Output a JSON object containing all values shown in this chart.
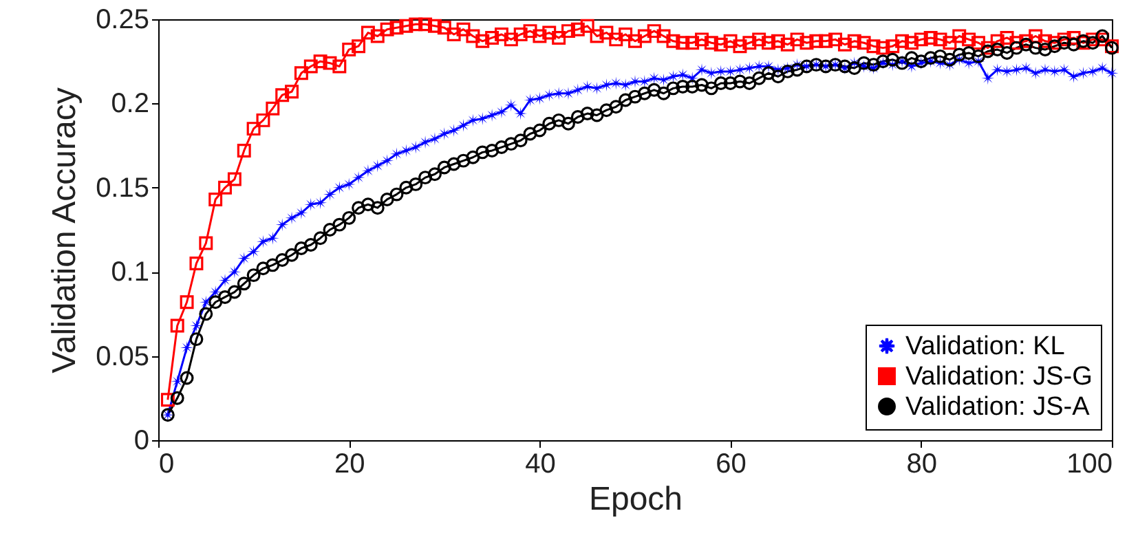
{
  "chart_data": {
    "type": "line",
    "xlabel": "Epoch",
    "ylabel": "Validation Accuracy",
    "x": [
      1,
      2,
      3,
      4,
      5,
      6,
      7,
      8,
      9,
      10,
      11,
      12,
      13,
      14,
      15,
      16,
      17,
      18,
      19,
      20,
      21,
      22,
      23,
      24,
      25,
      26,
      27,
      28,
      29,
      30,
      31,
      32,
      33,
      34,
      35,
      36,
      37,
      38,
      39,
      40,
      41,
      42,
      43,
      44,
      45,
      46,
      47,
      48,
      49,
      50,
      51,
      52,
      53,
      54,
      55,
      56,
      57,
      58,
      59,
      60,
      61,
      62,
      63,
      64,
      65,
      66,
      67,
      68,
      69,
      70,
      71,
      72,
      73,
      74,
      75,
      76,
      77,
      78,
      79,
      80,
      81,
      82,
      83,
      84,
      85,
      86,
      87,
      88,
      89,
      90,
      91,
      92,
      93,
      94,
      95,
      96,
      97,
      98,
      99,
      100
    ],
    "series": [
      {
        "name": "Validation: KL",
        "color": "#0000ff",
        "marker": "star",
        "values": [
          0.015,
          0.035,
          0.055,
          0.068,
          0.082,
          0.088,
          0.095,
          0.1,
          0.108,
          0.112,
          0.118,
          0.12,
          0.128,
          0.132,
          0.135,
          0.14,
          0.141,
          0.146,
          0.15,
          0.152,
          0.156,
          0.16,
          0.163,
          0.166,
          0.17,
          0.172,
          0.174,
          0.177,
          0.179,
          0.182,
          0.184,
          0.187,
          0.19,
          0.191,
          0.193,
          0.195,
          0.199,
          0.194,
          0.202,
          0.203,
          0.205,
          0.206,
          0.206,
          0.208,
          0.21,
          0.209,
          0.211,
          0.212,
          0.211,
          0.213,
          0.213,
          0.215,
          0.214,
          0.216,
          0.217,
          0.215,
          0.22,
          0.218,
          0.219,
          0.219,
          0.22,
          0.221,
          0.222,
          0.222,
          0.22,
          0.221,
          0.223,
          0.222,
          0.223,
          0.222,
          0.223,
          0.221,
          0.224,
          0.222,
          0.221,
          0.224,
          0.223,
          0.225,
          0.222,
          0.224,
          0.225,
          0.224,
          0.223,
          0.226,
          0.224,
          0.225,
          0.215,
          0.22,
          0.219,
          0.22,
          0.221,
          0.218,
          0.22,
          0.219,
          0.22,
          0.216,
          0.218,
          0.219,
          0.221,
          0.218
        ]
      },
      {
        "name": "Validation: JS-G",
        "color": "#ff0000",
        "marker": "square",
        "values": [
          0.024,
          0.068,
          0.082,
          0.105,
          0.117,
          0.143,
          0.15,
          0.155,
          0.172,
          0.185,
          0.19,
          0.197,
          0.205,
          0.207,
          0.218,
          0.222,
          0.225,
          0.224,
          0.222,
          0.232,
          0.234,
          0.242,
          0.24,
          0.244,
          0.245,
          0.246,
          0.247,
          0.247,
          0.246,
          0.245,
          0.241,
          0.244,
          0.24,
          0.237,
          0.239,
          0.241,
          0.238,
          0.241,
          0.243,
          0.24,
          0.242,
          0.239,
          0.243,
          0.244,
          0.246,
          0.24,
          0.242,
          0.238,
          0.241,
          0.237,
          0.24,
          0.243,
          0.24,
          0.237,
          0.236,
          0.236,
          0.238,
          0.236,
          0.235,
          0.237,
          0.234,
          0.236,
          0.238,
          0.236,
          0.237,
          0.235,
          0.238,
          0.236,
          0.237,
          0.237,
          0.238,
          0.235,
          0.237,
          0.236,
          0.234,
          0.233,
          0.234,
          0.237,
          0.236,
          0.238,
          0.239,
          0.238,
          0.236,
          0.24,
          0.238,
          0.236,
          0.233,
          0.237,
          0.239,
          0.236,
          0.237,
          0.24,
          0.237,
          0.236,
          0.238,
          0.239,
          0.236,
          0.238,
          0.238,
          0.234
        ]
      },
      {
        "name": "Validation: JS-A",
        "color": "#000000",
        "marker": "circle",
        "values": [
          0.015,
          0.025,
          0.037,
          0.06,
          0.075,
          0.082,
          0.085,
          0.088,
          0.093,
          0.098,
          0.102,
          0.104,
          0.107,
          0.11,
          0.114,
          0.116,
          0.12,
          0.125,
          0.128,
          0.132,
          0.138,
          0.14,
          0.138,
          0.143,
          0.146,
          0.15,
          0.152,
          0.156,
          0.158,
          0.162,
          0.164,
          0.166,
          0.168,
          0.171,
          0.172,
          0.174,
          0.176,
          0.178,
          0.182,
          0.184,
          0.188,
          0.19,
          0.188,
          0.192,
          0.194,
          0.193,
          0.196,
          0.198,
          0.202,
          0.204,
          0.206,
          0.208,
          0.206,
          0.209,
          0.21,
          0.21,
          0.211,
          0.209,
          0.212,
          0.212,
          0.213,
          0.212,
          0.215,
          0.218,
          0.216,
          0.219,
          0.22,
          0.222,
          0.223,
          0.222,
          0.223,
          0.222,
          0.221,
          0.224,
          0.223,
          0.225,
          0.226,
          0.224,
          0.227,
          0.225,
          0.227,
          0.228,
          0.226,
          0.229,
          0.23,
          0.228,
          0.231,
          0.232,
          0.23,
          0.233,
          0.235,
          0.233,
          0.232,
          0.234,
          0.236,
          0.235,
          0.237,
          0.236,
          0.24,
          0.233
        ]
      }
    ],
    "xlim": [
      0,
      100
    ],
    "xticks": [
      0,
      20,
      40,
      60,
      80,
      100
    ],
    "ylim": [
      0,
      0.25
    ],
    "yticks": [
      0,
      0.05,
      0.1,
      0.15,
      0.2,
      0.25
    ],
    "grid": false,
    "legend": "bottom right",
    "line_style": "solid"
  }
}
